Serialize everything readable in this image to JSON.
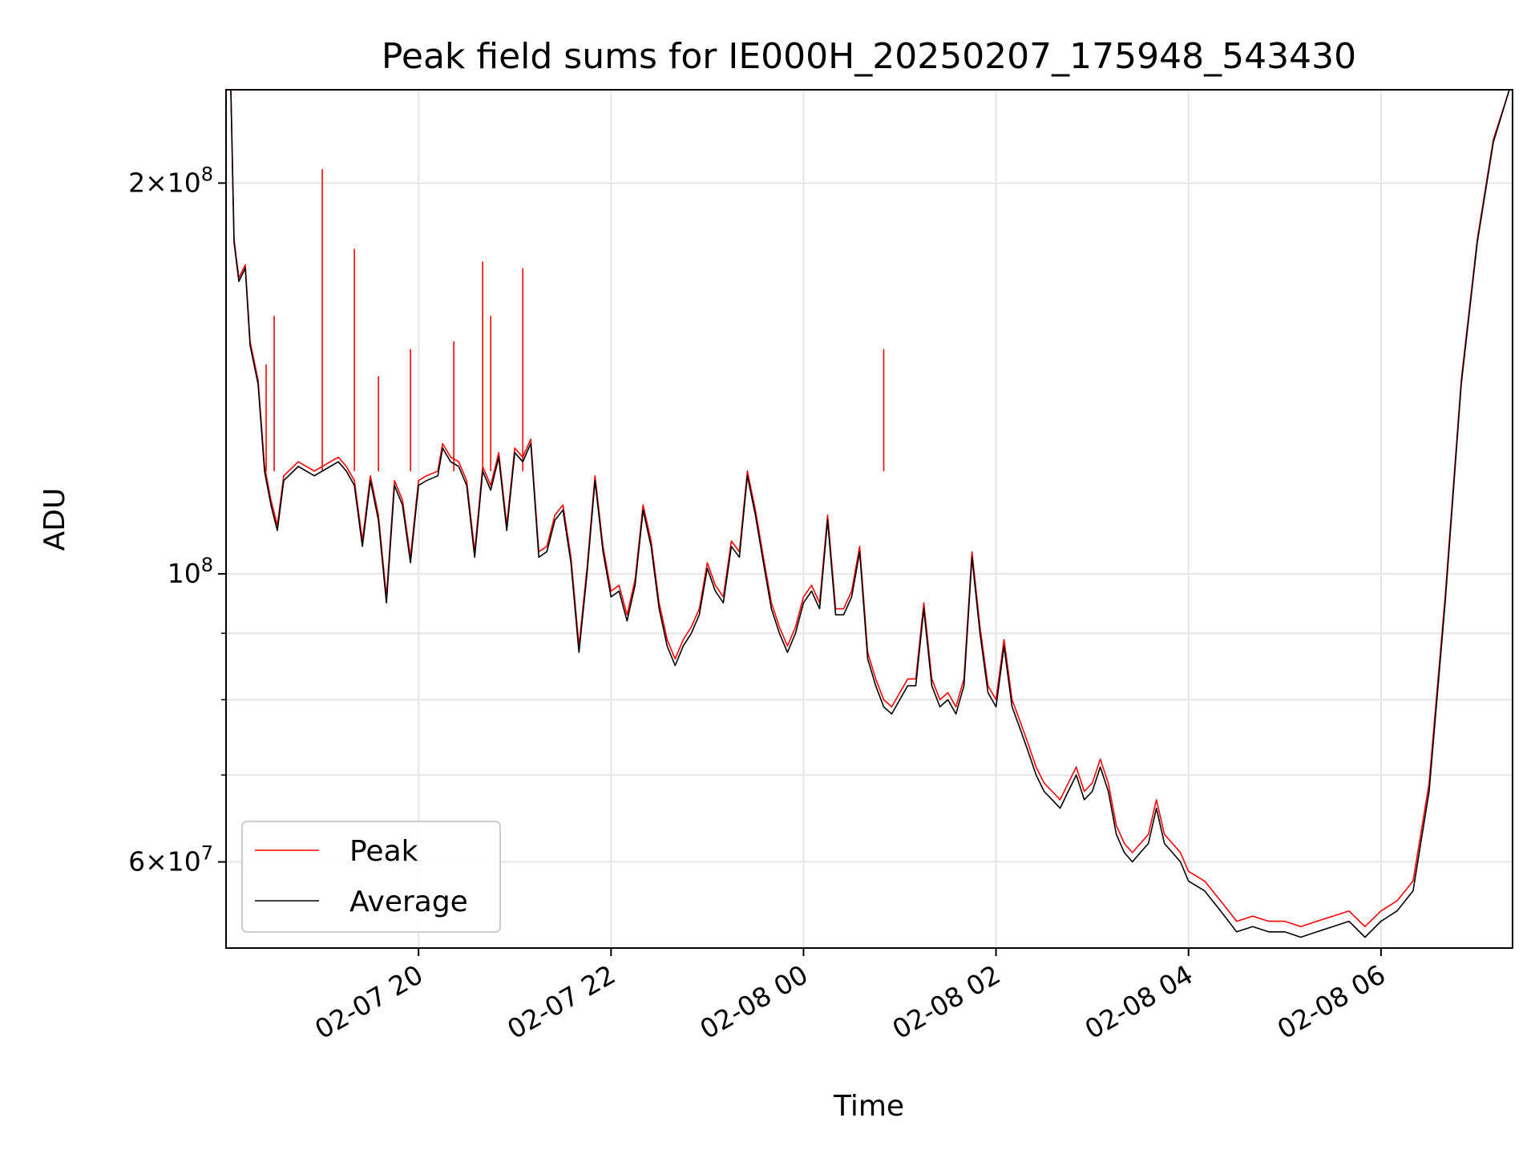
{
  "chart_data": {
    "type": "line",
    "title": "Peak field sums for IE000H_20250207_175948_543430",
    "xlabel": "Time",
    "ylabel": "ADU",
    "yscale": "log",
    "ylim": [
      51500000,
      236000000
    ],
    "xlim": [
      "2025-02-07 18:00",
      "2025-02-08 07:22"
    ],
    "grid": true,
    "legend": "lower left",
    "x_ticks": [
      "02-07 20",
      "02-07 22",
      "02-08 00",
      "02-08 02",
      "02-08 04",
      "02-08 06"
    ],
    "x_tick_times": [
      "2025-02-07 20:00",
      "2025-02-07 22:00",
      "2025-02-08 00:00",
      "2025-02-08 02:00",
      "2025-02-08 04:00",
      "2025-02-08 06:00"
    ],
    "y_ticks": [
      {
        "value": 200000000,
        "mantissa": "2",
        "exponent": "8"
      },
      {
        "value": 100000000,
        "mantissa": "",
        "exponent": "8"
      },
      {
        "value": 60000000,
        "mantissa": "6",
        "exponent": "7"
      }
    ],
    "y_minor_ticks": [
      70000000,
      80000000,
      90000000
    ],
    "times": [
      "2025-02-07 18:03",
      "2025-02-07 18:05",
      "2025-02-07 18:08",
      "2025-02-07 18:12",
      "2025-02-07 18:15",
      "2025-02-07 18:20",
      "2025-02-07 18:24",
      "2025-02-07 18:28",
      "2025-02-07 18:32",
      "2025-02-07 18:36",
      "2025-02-07 18:45",
      "2025-02-07 18:55",
      "2025-02-07 19:05",
      "2025-02-07 19:10",
      "2025-02-07 19:15",
      "2025-02-07 19:20",
      "2025-02-07 19:25",
      "2025-02-07 19:30",
      "2025-02-07 19:35",
      "2025-02-07 19:40",
      "2025-02-07 19:45",
      "2025-02-07 19:50",
      "2025-02-07 19:55",
      "2025-02-07 20:00",
      "2025-02-07 20:05",
      "2025-02-07 20:12",
      "2025-02-07 20:15",
      "2025-02-07 20:20",
      "2025-02-07 20:25",
      "2025-02-07 20:30",
      "2025-02-07 20:35",
      "2025-02-07 20:40",
      "2025-02-07 20:45",
      "2025-02-07 20:50",
      "2025-02-07 20:55",
      "2025-02-07 21:00",
      "2025-02-07 21:05",
      "2025-02-07 21:10",
      "2025-02-07 21:15",
      "2025-02-07 21:20",
      "2025-02-07 21:25",
      "2025-02-07 21:30",
      "2025-02-07 21:35",
      "2025-02-07 21:40",
      "2025-02-07 21:45",
      "2025-02-07 21:50",
      "2025-02-07 21:55",
      "2025-02-07 22:00",
      "2025-02-07 22:05",
      "2025-02-07 22:10",
      "2025-02-07 22:15",
      "2025-02-07 22:20",
      "2025-02-07 22:25",
      "2025-02-07 22:30",
      "2025-02-07 22:35",
      "2025-02-07 22:40",
      "2025-02-07 22:45",
      "2025-02-07 22:50",
      "2025-02-07 22:55",
      "2025-02-07 23:00",
      "2025-02-07 23:05",
      "2025-02-07 23:10",
      "2025-02-07 23:15",
      "2025-02-07 23:20",
      "2025-02-07 23:25",
      "2025-02-07 23:30",
      "2025-02-07 23:35",
      "2025-02-07 23:40",
      "2025-02-07 23:45",
      "2025-02-07 23:50",
      "2025-02-07 23:55",
      "2025-02-08 00:00",
      "2025-02-08 00:05",
      "2025-02-08 00:10",
      "2025-02-08 00:15",
      "2025-02-08 00:20",
      "2025-02-08 00:25",
      "2025-02-08 00:30",
      "2025-02-08 00:35",
      "2025-02-08 00:40",
      "2025-02-08 00:45",
      "2025-02-08 00:50",
      "2025-02-08 00:55",
      "2025-02-08 01:00",
      "2025-02-08 01:05",
      "2025-02-08 01:10",
      "2025-02-08 01:15",
      "2025-02-08 01:20",
      "2025-02-08 01:25",
      "2025-02-08 01:30",
      "2025-02-08 01:35",
      "2025-02-08 01:40",
      "2025-02-08 01:45",
      "2025-02-08 01:50",
      "2025-02-08 01:55",
      "2025-02-08 02:00",
      "2025-02-08 02:05",
      "2025-02-08 02:10",
      "2025-02-08 02:15",
      "2025-02-08 02:20",
      "2025-02-08 02:25",
      "2025-02-08 02:30",
      "2025-02-08 02:35",
      "2025-02-08 02:40",
      "2025-02-08 02:45",
      "2025-02-08 02:50",
      "2025-02-08 02:55",
      "2025-02-08 03:00",
      "2025-02-08 03:05",
      "2025-02-08 03:10",
      "2025-02-08 03:15",
      "2025-02-08 03:20",
      "2025-02-08 03:25",
      "2025-02-08 03:30",
      "2025-02-08 03:35",
      "2025-02-08 03:40",
      "2025-02-08 03:45",
      "2025-02-08 03:50",
      "2025-02-08 03:55",
      "2025-02-08 04:00",
      "2025-02-08 04:10",
      "2025-02-08 04:20",
      "2025-02-08 04:30",
      "2025-02-08 04:40",
      "2025-02-08 04:50",
      "2025-02-08 05:00",
      "2025-02-08 05:10",
      "2025-02-08 05:20",
      "2025-02-08 05:30",
      "2025-02-08 05:40",
      "2025-02-08 05:50",
      "2025-02-08 06:00",
      "2025-02-08 06:10",
      "2025-02-08 06:20",
      "2025-02-08 06:30",
      "2025-02-08 06:40",
      "2025-02-08 06:50",
      "2025-02-08 07:00",
      "2025-02-08 07:10",
      "2025-02-08 07:20"
    ],
    "series": [
      {
        "name": "Average",
        "color": "#000000",
        "values": [
          236000000,
          180000000,
          168000000,
          172000000,
          150000000,
          140000000,
          120000000,
          113000000,
          108000000,
          118000000,
          121000000,
          119000000,
          121000000,
          122000000,
          120000000,
          117000000,
          105000000,
          118000000,
          110000000,
          95000000,
          117000000,
          113000000,
          102000000,
          117000000,
          118000000,
          119000000,
          125000000,
          122000000,
          121000000,
          117000000,
          103000000,
          120000000,
          116000000,
          123000000,
          108000000,
          124000000,
          122000000,
          126000000,
          103000000,
          104000000,
          110000000,
          112000000,
          102000000,
          87000000,
          100000000,
          118000000,
          104000000,
          96000000,
          97000000,
          92000000,
          98000000,
          112000000,
          105000000,
          94000000,
          88000000,
          85000000,
          88000000,
          90000000,
          93000000,
          101000000,
          97000000,
          95000000,
          105000000,
          103000000,
          119000000,
          111000000,
          102000000,
          94000000,
          90000000,
          87000000,
          90000000,
          95000000,
          97000000,
          94000000,
          110000000,
          93000000,
          93000000,
          96000000,
          104000000,
          86000000,
          82000000,
          79000000,
          78000000,
          80000000,
          82000000,
          82000000,
          94000000,
          82000000,
          79000000,
          80000000,
          78000000,
          82000000,
          103000000,
          90000000,
          81000000,
          79000000,
          88000000,
          79000000,
          76000000,
          73000000,
          70000000,
          68000000,
          67000000,
          66000000,
          68000000,
          70000000,
          67000000,
          68000000,
          71000000,
          68000000,
          63000000,
          61000000,
          60000000,
          61000000,
          62000000,
          66000000,
          62000000,
          61000000,
          60000000,
          58000000,
          57000000,
          55000000,
          53000000,
          53500000,
          53000000,
          53000000,
          52500000,
          53000000,
          53500000,
          54000000,
          52500000,
          54000000,
          55000000,
          57000000,
          68000000,
          95000000,
          140000000,
          180000000,
          215000000,
          236000000
        ]
      },
      {
        "name": "Peak",
        "color": "#ff0000",
        "values": [
          236000000,
          181000000,
          169000000,
          173000000,
          151000000,
          141000000,
          121000000,
          114000000,
          109000000,
          119000000,
          122000000,
          120000000,
          122000000,
          123000000,
          121000000,
          118000000,
          106000000,
          119000000,
          111000000,
          96000000,
          118000000,
          114000000,
          103000000,
          118000000,
          119000000,
          120000000,
          126000000,
          123000000,
          122000000,
          118000000,
          104000000,
          121000000,
          117000000,
          124000000,
          109000000,
          125000000,
          123000000,
          127000000,
          104000000,
          105000000,
          111000000,
          113000000,
          103000000,
          88000000,
          101000000,
          119000000,
          105000000,
          97000000,
          98000000,
          93000000,
          99000000,
          113000000,
          106000000,
          95000000,
          89000000,
          86000000,
          89000000,
          91000000,
          94000000,
          102000000,
          98000000,
          96000000,
          106000000,
          104000000,
          120000000,
          112000000,
          103000000,
          95000000,
          91000000,
          88000000,
          91000000,
          96000000,
          98000000,
          95000000,
          111000000,
          94000000,
          94000000,
          97000000,
          105000000,
          87000000,
          83000000,
          80000000,
          79000000,
          81000000,
          83000000,
          83000000,
          95000000,
          83000000,
          80000000,
          81000000,
          79000000,
          83000000,
          104000000,
          91000000,
          82000000,
          80000000,
          89000000,
          80000000,
          77000000,
          74000000,
          71000000,
          69000000,
          68000000,
          67000000,
          69000000,
          71000000,
          68000000,
          69000000,
          72000000,
          69000000,
          64000000,
          62000000,
          61000000,
          62000000,
          63000000,
          67000000,
          63000000,
          62000000,
          61000000,
          59000000,
          58000000,
          56000000,
          54000000,
          54500000,
          54000000,
          54000000,
          53500000,
          54000000,
          54500000,
          55000000,
          53500000,
          55000000,
          56000000,
          58000000,
          69000000,
          96000000,
          141000000,
          181000000,
          216000000,
          236000000
        ]
      }
    ],
    "peak_spikes": [
      {
        "time": "2025-02-07 18:25",
        "value": 145000000
      },
      {
        "time": "2025-02-07 18:30",
        "value": 158000000
      },
      {
        "time": "2025-02-07 19:00",
        "value": 205000000
      },
      {
        "time": "2025-02-07 19:20",
        "value": 178000000
      },
      {
        "time": "2025-02-07 19:35",
        "value": 142000000
      },
      {
        "time": "2025-02-07 19:55",
        "value": 149000000
      },
      {
        "time": "2025-02-07 20:22",
        "value": 151000000
      },
      {
        "time": "2025-02-07 20:40",
        "value": 174000000
      },
      {
        "time": "2025-02-07 20:45",
        "value": 158000000
      },
      {
        "time": "2025-02-07 21:05",
        "value": 172000000
      },
      {
        "time": "2025-02-08 00:50",
        "value": 149000000
      }
    ]
  }
}
